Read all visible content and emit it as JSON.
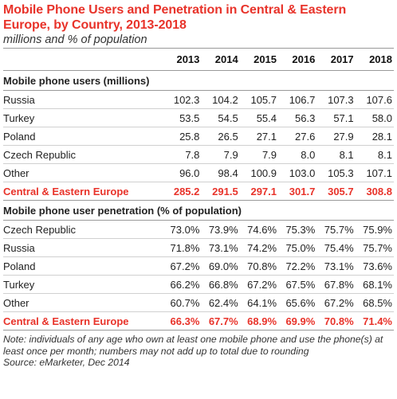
{
  "title": "Mobile Phone Users and Penetration in Central & Eastern Europe, by Country, 2013-2018",
  "subtitle": "millions and % of population",
  "chart_data": {
    "type": "table",
    "columns": [
      "2013",
      "2014",
      "2015",
      "2016",
      "2017",
      "2018"
    ],
    "sections": [
      {
        "heading": "Mobile phone users (millions)",
        "rows": [
          {
            "label": "Russia",
            "values": [
              "102.3",
              "104.2",
              "105.7",
              "106.7",
              "107.3",
              "107.6"
            ]
          },
          {
            "label": "Turkey",
            "values": [
              "53.5",
              "54.5",
              "55.4",
              "56.3",
              "57.1",
              "58.0"
            ]
          },
          {
            "label": "Poland",
            "values": [
              "25.8",
              "26.5",
              "27.1",
              "27.6",
              "27.9",
              "28.1"
            ]
          },
          {
            "label": "Czech Republic",
            "values": [
              "7.8",
              "7.9",
              "7.9",
              "8.0",
              "8.1",
              "8.1"
            ]
          },
          {
            "label": "Other",
            "values": [
              "96.0",
              "98.4",
              "100.9",
              "103.0",
              "105.3",
              "107.1"
            ]
          }
        ],
        "total": {
          "label": "Central & Eastern Europe",
          "values": [
            "285.2",
            "291.5",
            "297.1",
            "301.7",
            "305.7",
            "308.8"
          ]
        }
      },
      {
        "heading": "Mobile phone user penetration (% of population)",
        "rows": [
          {
            "label": "Czech Republic",
            "values": [
              "73.0%",
              "73.9%",
              "74.6%",
              "75.3%",
              "75.7%",
              "75.9%"
            ]
          },
          {
            "label": "Russia",
            "values": [
              "71.8%",
              "73.1%",
              "74.2%",
              "75.0%",
              "75.4%",
              "75.7%"
            ]
          },
          {
            "label": "Poland",
            "values": [
              "67.2%",
              "69.0%",
              "70.8%",
              "72.2%",
              "73.1%",
              "73.6%"
            ]
          },
          {
            "label": "Turkey",
            "values": [
              "66.2%",
              "66.8%",
              "67.2%",
              "67.5%",
              "67.8%",
              "68.1%"
            ]
          },
          {
            "label": "Other",
            "values": [
              "60.7%",
              "62.4%",
              "64.1%",
              "65.6%",
              "67.2%",
              "68.5%"
            ]
          }
        ],
        "total": {
          "label": "Central & Eastern Europe",
          "values": [
            "66.3%",
            "67.7%",
            "68.9%",
            "69.9%",
            "70.8%",
            "71.4%"
          ]
        }
      }
    ],
    "accent_color": "#e8332a"
  },
  "note": "Note: individuals of any age who own at least one mobile phone and use the phone(s) at least once per month; numbers may not add up to total due to rounding",
  "source": "Source: eMarketer, Dec 2014"
}
